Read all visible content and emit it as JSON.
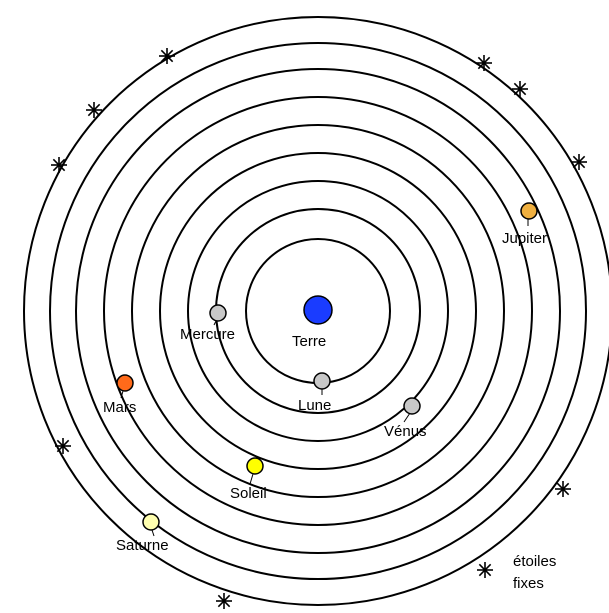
{
  "diagram": {
    "colors": {
      "background": "#ffffff",
      "orbit": "#000000",
      "terre": "#1a3cff",
      "moon_mercury_venus": "#c8c8c8",
      "mars": "#ff6a1a",
      "soleil": "#ffff00",
      "jupiter": "#f0b040",
      "saturne": "#ffffb0"
    },
    "bodies": {
      "terre": "Terre",
      "lune": "Lune",
      "mercure": "Mercure",
      "venus": "Vénus",
      "soleil": "Soleil",
      "mars": "Mars",
      "jupiter": "Jupiter",
      "saturne": "Saturne"
    },
    "fixed_stars_line1": "étoiles",
    "fixed_stars_line2": "fixes"
  }
}
